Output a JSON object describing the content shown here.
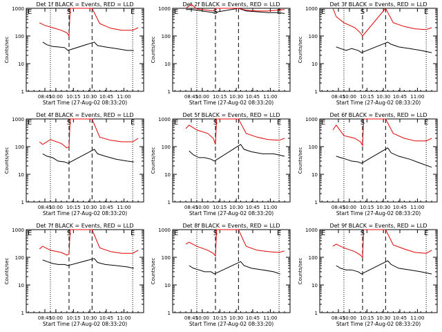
{
  "colors": {
    "events": "#000000",
    "lld": "#e00000",
    "background": "#ffffff"
  },
  "chart_data": [
    {
      "type": "line",
      "title": "Det 1f BLACK = Events, RED = LLD",
      "xlabel": "Start Time (27-Aug-02 08:33:20)",
      "ylabel": "Counts/sec",
      "yscale": "log",
      "ylim": [
        1,
        1000
      ],
      "yticks": [
        "1",
        "10",
        "100",
        "1000"
      ],
      "xticks": [
        "08:45",
        "10:00",
        "10:15",
        "10:30",
        "10:45",
        "11:00"
      ],
      "vlines": [
        {
          "x": "09:55",
          "style": "dotted"
        },
        {
          "x": "10:12",
          "style": "dashed",
          "label": "S"
        },
        {
          "x": "10:33",
          "style": "dashed"
        },
        {
          "x": "11:10",
          "style": "dotted",
          "label": "E"
        }
      ],
      "start_marker": "E",
      "series": [
        {
          "name": "Events",
          "x": [
            "09:48",
            "09:52",
            "09:57",
            "10:02",
            "10:08",
            "10:11",
            "10:35",
            "10:38",
            "10:45",
            "10:55",
            "11:05",
            "11:11"
          ],
          "values": [
            60,
            48,
            42,
            40,
            38,
            30,
            60,
            45,
            40,
            35,
            30,
            30
          ]
        },
        {
          "name": "LLD",
          "x": [
            "09:45",
            "09:50",
            "09:57",
            "10:05",
            "10:10",
            "10:12",
            "10:13",
            "10:33",
            "10:40",
            "10:50",
            "11:00",
            "11:10",
            "11:15"
          ],
          "values": [
            300,
            240,
            200,
            160,
            130,
            100,
            1000,
            1000,
            280,
            190,
            160,
            160,
            200
          ]
        }
      ]
    },
    {
      "type": "line",
      "title": "Det 2f BLACK = Events, RED = LLD",
      "xlabel": "Start Time (27-Aug-02 08:33:20)",
      "ylabel": "Counts/sec",
      "yscale": "log",
      "ylim": [
        1,
        1000
      ],
      "yticks": [
        "1",
        "10",
        "100",
        "1000"
      ],
      "xticks": [
        "08:45",
        "10:00",
        "10:15",
        "10:30",
        "10:45",
        "11:00"
      ],
      "vlines": [
        {
          "x": "09:55",
          "style": "dotted"
        },
        {
          "x": "10:12",
          "style": "dashed",
          "label": "S"
        },
        {
          "x": "10:33",
          "style": "dashed"
        },
        {
          "x": "11:10",
          "style": "dotted",
          "label": "E"
        }
      ],
      "start_marker": "E",
      "series": [
        {
          "name": "Events",
          "x": [
            "09:45",
            "09:50",
            "09:55",
            "10:05",
            "10:10",
            "10:33",
            "10:40",
            "10:50",
            "11:00",
            "11:10",
            "11:15"
          ],
          "values": [
            900,
            900,
            850,
            750,
            700,
            1000,
            800,
            750,
            700,
            700,
            650
          ]
        },
        {
          "name": "LLD",
          "x": [
            "09:45",
            "09:50",
            "09:55",
            "10:05",
            "10:10",
            "10:12",
            "10:33",
            "10:40",
            "10:50",
            "11:00",
            "11:15"
          ],
          "values": [
            1000,
            1400,
            950,
            850,
            800,
            1000,
            1000,
            850,
            800,
            800,
            900
          ]
        }
      ]
    },
    {
      "type": "line",
      "title": "Det 3f BLACK = Events, RED = LLD",
      "xlabel": "Start Time (27-Aug-02 08:33:20)",
      "ylabel": "Counts/sec",
      "yscale": "log",
      "ylim": [
        1,
        1000
      ],
      "yticks": [
        "1",
        "10",
        "100",
        "1000"
      ],
      "xticks": [
        "08:45",
        "10:00",
        "10:15",
        "10:30",
        "10:45",
        "11:00"
      ],
      "vlines": [
        {
          "x": "09:55",
          "style": "dotted"
        },
        {
          "x": "10:12",
          "style": "dashed",
          "label": "S"
        },
        {
          "x": "10:33",
          "style": "dashed"
        },
        {
          "x": "11:10",
          "style": "dotted",
          "label": "E"
        }
      ],
      "start_marker": "E",
      "series": [
        {
          "name": "Events",
          "x": [
            "09:48",
            "09:52",
            "09:57",
            "10:02",
            "10:08",
            "10:11",
            "10:35",
            "10:38",
            "10:45",
            "10:55",
            "11:05",
            "11:15"
          ],
          "values": [
            40,
            35,
            30,
            35,
            30,
            25,
            60,
            50,
            40,
            35,
            30,
            25
          ]
        },
        {
          "name": "LLD",
          "x": [
            "09:45",
            "09:48",
            "09:55",
            "10:05",
            "10:10",
            "10:12",
            "10:33",
            "10:40",
            "10:50",
            "11:00",
            "11:10",
            "11:15"
          ],
          "values": [
            1000,
            500,
            300,
            200,
            130,
            100,
            1000,
            300,
            220,
            180,
            170,
            200
          ]
        }
      ]
    },
    {
      "type": "line",
      "title": "Det 4f BLACK = Events, RED = LLD",
      "xlabel": "Start Time (27-Aug-02 08:33:20)",
      "ylabel": "Counts/sec",
      "yscale": "log",
      "ylim": [
        1,
        1000
      ],
      "yticks": [
        "1",
        "10",
        "100",
        "1000"
      ],
      "xticks": [
        "08:45",
        "10:00",
        "10:15",
        "10:30",
        "10:45",
        "11:00"
      ],
      "vlines": [
        {
          "x": "09:55",
          "style": "dotted"
        },
        {
          "x": "10:12",
          "style": "dashed",
          "label": "S"
        },
        {
          "x": "10:33",
          "style": "dashed"
        },
        {
          "x": "11:10",
          "style": "dotted",
          "label": "E"
        }
      ],
      "start_marker": "E",
      "series": [
        {
          "name": "Events",
          "x": [
            "09:48",
            "09:52",
            "09:57",
            "10:02",
            "10:08",
            "10:11",
            "10:35",
            "10:38",
            "10:45",
            "10:55",
            "11:05",
            "11:11"
          ],
          "values": [
            55,
            45,
            40,
            30,
            28,
            25,
            80,
            55,
            45,
            35,
            30,
            28
          ]
        },
        {
          "name": "LLD",
          "x": [
            "09:45",
            "09:48",
            "09:55",
            "10:05",
            "10:10",
            "10:12",
            "10:13",
            "10:33",
            "10:40",
            "10:50",
            "11:00",
            "11:10",
            "11:15"
          ],
          "values": [
            150,
            120,
            180,
            130,
            90,
            100,
            1000,
            1000,
            220,
            170,
            150,
            150,
            200
          ]
        }
      ]
    },
    {
      "type": "line",
      "title": "Det 5f BLACK = Events, RED = LLD",
      "xlabel": "Start Time (27-Aug-02 08:33:20)",
      "ylabel": "Counts/sec",
      "yscale": "log",
      "ylim": [
        1,
        1000
      ],
      "yticks": [
        "1",
        "10",
        "100",
        "1000"
      ],
      "xticks": [
        "08:45",
        "10:00",
        "10:15",
        "10:30",
        "10:45",
        "11:00"
      ],
      "vlines": [
        {
          "x": "09:55",
          "style": "dotted"
        },
        {
          "x": "10:12",
          "style": "dashed",
          "label": "S"
        },
        {
          "x": "10:33",
          "style": "dashed"
        },
        {
          "x": "11:10",
          "style": "dotted",
          "label": "E"
        }
      ],
      "start_marker": "E",
      "series": [
        {
          "name": "Events",
          "x": [
            "09:48",
            "09:52",
            "09:57",
            "10:02",
            "10:08",
            "10:11",
            "10:35",
            "10:38",
            "10:45",
            "10:55",
            "11:05",
            "11:15"
          ],
          "values": [
            70,
            50,
            40,
            40,
            35,
            30,
            120,
            80,
            65,
            55,
            55,
            45
          ]
        },
        {
          "name": "LLD",
          "x": [
            "09:45",
            "09:48",
            "09:55",
            "10:05",
            "10:10",
            "10:12",
            "10:13",
            "10:33",
            "10:40",
            "10:50",
            "11:00",
            "11:10",
            "11:15"
          ],
          "values": [
            450,
            600,
            400,
            300,
            200,
            120,
            1000,
            1000,
            300,
            220,
            180,
            170,
            200
          ]
        }
      ]
    },
    {
      "type": "line",
      "title": "Det 6f BLACK = Events, RED = LLD",
      "xlabel": "Start Time (27-Aug-02 08:33:20)",
      "ylabel": "Counts/sec",
      "yscale": "log",
      "ylim": [
        1,
        1000
      ],
      "yticks": [
        "1",
        "10",
        "100",
        "1000"
      ],
      "xticks": [
        "08:45",
        "10:00",
        "10:15",
        "10:30",
        "10:45",
        "11:00"
      ],
      "vlines": [
        {
          "x": "09:55",
          "style": "dotted"
        },
        {
          "x": "10:12",
          "style": "dashed",
          "label": "S"
        },
        {
          "x": "10:33",
          "style": "dashed"
        },
        {
          "x": "11:10",
          "style": "dotted",
          "label": "E"
        }
      ],
      "start_marker": "E",
      "series": [
        {
          "name": "Events",
          "x": [
            "09:48",
            "09:52",
            "09:57",
            "10:02",
            "10:08",
            "10:11",
            "10:35",
            "10:38",
            "10:45",
            "10:55",
            "11:05",
            "11:15"
          ],
          "values": [
            45,
            40,
            35,
            30,
            28,
            25,
            90,
            60,
            45,
            35,
            25,
            18
          ]
        },
        {
          "name": "LLD",
          "x": [
            "09:45",
            "09:48",
            "09:55",
            "10:05",
            "10:10",
            "10:12",
            "10:13",
            "10:33",
            "10:40",
            "10:50",
            "11:00",
            "11:10",
            "11:15"
          ],
          "values": [
            400,
            600,
            250,
            200,
            150,
            110,
            1000,
            1000,
            300,
            200,
            160,
            160,
            200
          ]
        }
      ]
    },
    {
      "type": "line",
      "title": "Det 7f BLACK = Events, RED = LLD",
      "xlabel": "Start Time (27-Aug-02 08:33:20)",
      "ylabel": "Counts/sec",
      "yscale": "log",
      "ylim": [
        1,
        1000
      ],
      "yticks": [
        "1",
        "10",
        "100",
        "1000"
      ],
      "xticks": [
        "08:45",
        "10:00",
        "10:15",
        "10:30",
        "10:45",
        "11:00"
      ],
      "vlines": [
        {
          "x": "09:55",
          "style": "dotted"
        },
        {
          "x": "10:12",
          "style": "dashed",
          "label": "S"
        },
        {
          "x": "10:33",
          "style": "dashed"
        },
        {
          "x": "11:10",
          "style": "dotted",
          "label": "E"
        }
      ],
      "start_marker": "E",
      "series": [
        {
          "name": "Events",
          "x": [
            "09:48",
            "09:52",
            "09:57",
            "10:02",
            "10:08",
            "10:11",
            "10:35",
            "10:38",
            "10:45",
            "10:55",
            "11:05",
            "11:11"
          ],
          "values": [
            80,
            70,
            60,
            55,
            55,
            50,
            90,
            65,
            55,
            50,
            45,
            40
          ]
        },
        {
          "name": "LLD",
          "x": [
            "09:45",
            "09:48",
            "09:55",
            "10:05",
            "10:10",
            "10:12",
            "10:13",
            "10:33",
            "10:40",
            "10:50",
            "11:00",
            "11:10",
            "11:15"
          ],
          "values": [
            200,
            250,
            180,
            150,
            120,
            130,
            1000,
            1000,
            220,
            160,
            140,
            140,
            180
          ]
        }
      ]
    },
    {
      "type": "line",
      "title": "Det 8f BLACK = Events, RED = LLD",
      "xlabel": "Start Time (27-Aug-02 08:33:20)",
      "ylabel": "Counts/sec",
      "yscale": "log",
      "ylim": [
        1,
        1000
      ],
      "yticks": [
        "1",
        "10",
        "100",
        "1000"
      ],
      "xticks": [
        "08:45",
        "10:00",
        "10:15",
        "10:30",
        "10:45",
        "11:00"
      ],
      "vlines": [
        {
          "x": "09:55",
          "style": "dotted"
        },
        {
          "x": "10:12",
          "style": "dashed",
          "label": "S"
        },
        {
          "x": "10:33",
          "style": "dashed"
        },
        {
          "x": "11:10",
          "style": "dotted",
          "label": "E"
        }
      ],
      "start_marker": "E",
      "series": [
        {
          "name": "Events",
          "x": [
            "09:48",
            "09:52",
            "09:57",
            "10:02",
            "10:08",
            "10:11",
            "10:35",
            "10:38",
            "10:45",
            "10:55",
            "11:05",
            "11:11"
          ],
          "values": [
            50,
            40,
            35,
            30,
            30,
            25,
            70,
            50,
            40,
            35,
            30,
            25
          ]
        },
        {
          "name": "LLD",
          "x": [
            "09:45",
            "09:48",
            "09:55",
            "10:05",
            "10:10",
            "10:12",
            "10:13",
            "10:33",
            "10:40",
            "10:50",
            "11:00",
            "11:10",
            "11:15"
          ],
          "values": [
            300,
            350,
            250,
            180,
            140,
            110,
            1000,
            1000,
            250,
            180,
            160,
            150,
            170
          ]
        }
      ]
    },
    {
      "type": "line",
      "title": "Det 9f BLACK = Events, RED = LLD",
      "xlabel": "Start Time (27-Aug-02 08:33:20)",
      "ylabel": "Counts/sec",
      "yscale": "log",
      "ylim": [
        1,
        1000
      ],
      "yticks": [
        "1",
        "10",
        "100",
        "1000"
      ],
      "xticks": [
        "08:45",
        "10:00",
        "10:15",
        "10:30",
        "10:45",
        "11:00"
      ],
      "vlines": [
        {
          "x": "09:55",
          "style": "dotted"
        },
        {
          "x": "10:12",
          "style": "dashed",
          "label": "S"
        },
        {
          "x": "10:33",
          "style": "dashed"
        },
        {
          "x": "11:10",
          "style": "dotted",
          "label": "E"
        }
      ],
      "start_marker": "E",
      "series": [
        {
          "name": "Events",
          "x": [
            "09:48",
            "09:52",
            "09:57",
            "10:02",
            "10:08",
            "10:11",
            "10:35",
            "10:38",
            "10:45",
            "10:55",
            "11:05",
            "11:15"
          ],
          "values": [
            50,
            40,
            35,
            35,
            30,
            25,
            75,
            55,
            40,
            35,
            30,
            25
          ]
        },
        {
          "name": "LLD",
          "x": [
            "09:45",
            "09:48",
            "09:55",
            "10:05",
            "10:10",
            "10:12",
            "10:13",
            "10:33",
            "10:40",
            "10:50",
            "11:00",
            "11:10",
            "11:15"
          ],
          "values": [
            250,
            300,
            220,
            160,
            120,
            100,
            1000,
            1000,
            280,
            200,
            150,
            140,
            180
          ]
        }
      ]
    }
  ]
}
